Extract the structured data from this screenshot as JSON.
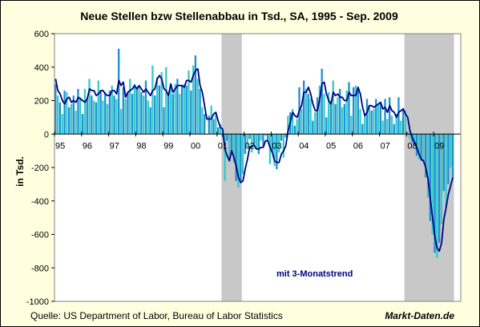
{
  "chart_data": {
    "type": "bar",
    "title": "Neue Stellen bzw Stellenabbau in Tsd., SA, 1995 - Sep. 2009",
    "ylabel": "in Tsd.",
    "ylim": [
      -1000,
      600
    ],
    "yticks": [
      "600",
      "400",
      "200",
      "0",
      "-200",
      "-400",
      "-600",
      "-800",
      "-1000"
    ],
    "x_labels": [
      "95",
      "96",
      "97",
      "98",
      "99",
      "00",
      "01",
      "02",
      "03",
      "04",
      "05",
      "06",
      "07",
      "08",
      "09"
    ],
    "recessions": [
      {
        "start": "2001-03",
        "end": "2001-11"
      },
      {
        "start": "2007-12",
        "end": "2009-09"
      }
    ],
    "annotation": "mit 3-Monatstrend",
    "grid": false,
    "colors": {
      "bar_dark": "#1f8fd0",
      "bar_light": "#33cccc",
      "trend": "#000080",
      "recession": "#c8c8c8",
      "plot_bg": "#ffffff"
    },
    "series": [
      {
        "values": [
          300,
          230,
          190,
          120,
          260,
          250,
          160,
          180,
          230,
          140,
          270,
          220,
          120,
          270,
          210,
          330,
          230,
          200,
          190,
          320,
          260,
          200,
          250,
          180,
          260,
          290,
          230,
          210,
          510,
          150,
          280,
          210,
          250,
          330,
          240,
          300,
          280,
          280,
          250,
          230,
          320,
          200,
          160,
          410,
          230,
          340,
          290,
          370,
          160,
          400,
          230,
          280,
          240,
          300,
          330,
          240,
          290,
          300,
          290,
          380,
          260,
          410,
          470,
          330,
          270,
          160,
          120,
          0,
          110,
          170,
          90,
          120,
          40,
          60,
          -20,
          -280,
          -40,
          -140,
          -120,
          -170,
          -280,
          -320,
          -280,
          -240,
          -120,
          -80,
          -30,
          -110,
          -70,
          -90,
          -120,
          -40,
          -70,
          -10,
          -40,
          -180,
          -110,
          -190,
          -210,
          -110,
          -40,
          -140,
          -20,
          110,
          130,
          150,
          50,
          90,
          280,
          150,
          320,
          270,
          240,
          210,
          80,
          130,
          220,
          290,
          390,
          240,
          100,
          250,
          190,
          320,
          180,
          220,
          270,
          160,
          180,
          260,
          310,
          110,
          280,
          290,
          270,
          150,
          60,
          120,
          210,
          170,
          140,
          150,
          210,
          180,
          190,
          80,
          210,
          90,
          220,
          110,
          60,
          120,
          220,
          80,
          150,
          140,
          10,
          -30,
          -50,
          -70,
          -130,
          -150,
          -160,
          -170,
          -260,
          -380,
          -520,
          -600,
          -710,
          -740,
          -650,
          -540,
          -340,
          -440,
          -300,
          -200,
          -260
        ]
      },
      {
        "name": "mit 3-Monatstrend",
        "values": [
          330,
          260,
          240,
          200,
          180,
          210,
          220,
          190,
          200,
          190,
          220,
          210,
          200,
          190,
          210,
          270,
          260,
          260,
          230,
          240,
          260,
          260,
          240,
          230,
          230,
          260,
          260,
          240,
          320,
          290,
          310,
          220,
          250,
          260,
          270,
          290,
          270,
          290,
          270,
          250,
          270,
          250,
          230,
          260,
          270,
          330,
          350,
          330,
          270,
          260,
          230,
          300,
          250,
          270,
          290,
          290,
          290,
          280,
          320,
          320,
          310,
          350,
          380,
          390,
          290,
          250,
          170,
          90,
          90,
          90,
          120,
          130,
          80,
          40,
          30,
          -90,
          -130,
          -160,
          -100,
          -140,
          -190,
          -260,
          -290,
          -280,
          -210,
          -150,
          -80,
          -70,
          -70,
          -90,
          -90,
          -80,
          -80,
          -40,
          -40,
          -80,
          -110,
          -160,
          -170,
          -170,
          -120,
          -100,
          -70,
          20,
          70,
          130,
          110,
          100,
          140,
          170,
          250,
          250,
          280,
          240,
          180,
          140,
          140,
          210,
          300,
          310,
          240,
          200,
          180,
          250,
          230,
          240,
          220,
          220,
          200,
          200,
          250,
          230,
          230,
          230,
          280,
          240,
          160,
          110,
          130,
          170,
          170,
          160,
          170,
          180,
          190,
          150,
          160,
          130,
          170,
          140,
          130,
          100,
          130,
          140,
          150,
          120,
          100,
          20,
          -20,
          -50,
          -80,
          -120,
          -150,
          -160,
          -200,
          -270,
          -390,
          -500,
          -610,
          -680,
          -700,
          -650,
          -510,
          -440,
          -360,
          -310,
          -260
        ]
      }
    ]
  },
  "footer": {
    "source": "Quelle: US Department of Labor, Bureau of Labor Statistics",
    "brand": "Markt-Daten.de"
  }
}
